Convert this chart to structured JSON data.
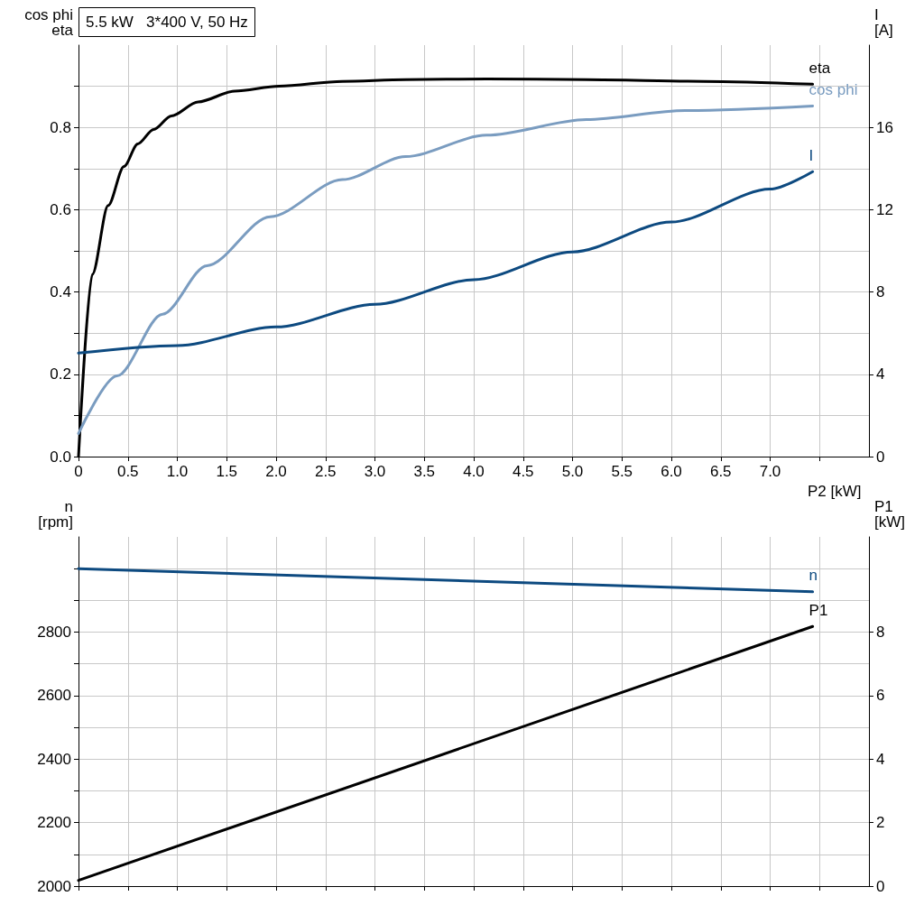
{
  "chart_data": [
    {
      "type": "line",
      "title": "5.5 kW   3*400 V, 50 Hz",
      "xlabel": "P2 [kW]",
      "ylabel": "cos phi\neta",
      "y2label": "I\n[A]",
      "xlim": [
        0,
        8
      ],
      "xticks": [
        0,
        0.5,
        {
          "value": 1,
          "label": "1.0"
        },
        1.5,
        {
          "value": 2,
          "label": "2.0"
        },
        2.5,
        {
          "value": 3,
          "label": "3.0"
        },
        3.5,
        {
          "value": 4,
          "label": "4.0"
        },
        4.5,
        {
          "value": 5,
          "label": "5.0"
        },
        5.5,
        {
          "value": 6,
          "label": "6.0"
        },
        6.5,
        {
          "value": 7,
          "label": "7.0"
        },
        {
          "value": 7.5,
          "label": null
        }
      ],
      "ylim": [
        0,
        1.0
      ],
      "yticks": [
        {
          "value": 0,
          "label": "0.0"
        },
        {
          "value": 0.1,
          "label": null
        },
        0.2,
        {
          "value": 0.3,
          "label": null
        },
        0.4,
        {
          "value": 0.5,
          "label": null
        },
        0.6,
        {
          "value": 0.7,
          "label": null
        },
        0.8,
        {
          "value": 0.9,
          "label": null
        }
      ],
      "y2lim": [
        0,
        20
      ],
      "y2ticks": [
        0,
        4,
        8,
        12,
        16
      ],
      "grid": true,
      "legend": false,
      "series": [
        {
          "name": "eta",
          "color": "#000000",
          "x": [
            0,
            0.14,
            0.3,
            0.46,
            0.6,
            0.76,
            0.94,
            1.21,
            1.58,
            2.03,
            2.67,
            3.31,
            4.13,
            5.14,
            6.32,
            7.43
          ],
          "values": [
            0,
            0.443,
            0.61,
            0.705,
            0.76,
            0.795,
            0.828,
            0.862,
            0.888,
            0.9,
            0.912,
            0.916,
            0.918,
            0.916,
            0.912,
            0.905
          ]
        },
        {
          "name": "cos phi",
          "color": "#7a9cc0",
          "x": [
            0,
            0.39,
            0.85,
            1.3,
            1.94,
            2.67,
            3.31,
            4.13,
            5.14,
            6.14,
            7.43
          ],
          "values": [
            0.056,
            0.196,
            0.346,
            0.464,
            0.583,
            0.673,
            0.729,
            0.781,
            0.819,
            0.841,
            0.852
          ]
        },
        {
          "name": "I",
          "color": "#0d4a80",
          "axis": "y2",
          "x": [
            0,
            1.0,
            2.0,
            3.0,
            4.0,
            5.0,
            6.0,
            7.0,
            7.43
          ],
          "values": [
            5.03,
            5.4,
            6.3,
            7.4,
            8.6,
            9.95,
            11.4,
            13.0,
            13.85
          ]
        }
      ]
    },
    {
      "type": "line",
      "ylabel": "n\n[rpm]",
      "y2label": "P1\n[kW]",
      "tick_labels": "y",
      "xlim": [
        0,
        8
      ],
      "xticks": [
        0,
        0.5,
        1.0,
        1.5,
        2.0,
        2.5,
        3.0,
        3.5,
        4.0,
        4.5,
        5.0,
        5.5,
        6.0,
        6.5,
        7.0,
        7.5
      ],
      "ylim": [
        2000,
        3100
      ],
      "yticks": [
        2000,
        {
          "value": 2100,
          "label": null
        },
        2200,
        {
          "value": 2300,
          "label": null
        },
        2400,
        {
          "value": 2500,
          "label": null
        },
        2600,
        {
          "value": 2700,
          "label": null
        },
        2800,
        {
          "value": 2900,
          "label": null
        },
        {
          "value": 3000,
          "label": null
        }
      ],
      "y2lim": [
        0,
        11
      ],
      "y2ticks": [
        0,
        2,
        4,
        6,
        8
      ],
      "grid": true,
      "legend": false,
      "series": [
        {
          "name": "n",
          "color": "#0d4a80",
          "x": [
            0,
            7.43
          ],
          "values": [
            3000,
            2927
          ]
        },
        {
          "name": "P1",
          "color": "#000000",
          "axis": "y2",
          "x": [
            0,
            7.43
          ],
          "values": [
            0.18,
            8.18
          ]
        }
      ]
    }
  ]
}
